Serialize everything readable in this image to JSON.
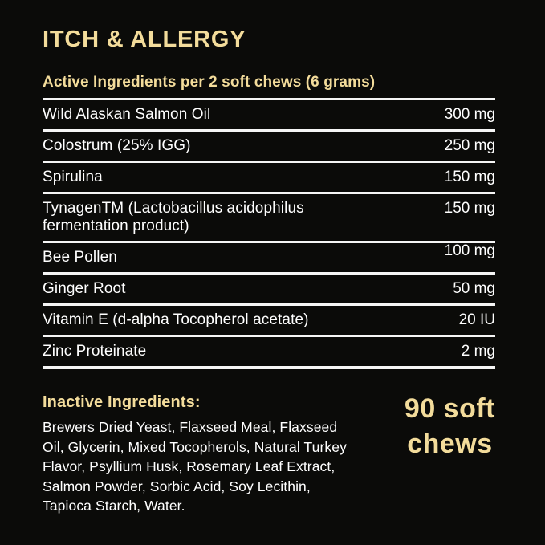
{
  "colors": {
    "background": "#0b0b09",
    "accent_yellow": "#f3dc9b",
    "text_white": "#ffffff",
    "divider_white": "#f5f5f5"
  },
  "header": {
    "title": "ITCH & ALLERGY",
    "subtitle": "Active Ingredients per 2 soft chews (6 grams)"
  },
  "table": {
    "rows": [
      {
        "name": "Wild Alaskan Salmon Oil",
        "amount": "300 mg"
      },
      {
        "name": "Colostrum (25% IGG)",
        "amount": "250 mg"
      },
      {
        "name": "Spirulina",
        "amount": "150 mg"
      },
      {
        "name": "TynagenTM (Lactobacillus acidophilus fermentation product)",
        "amount": "150 mg"
      },
      {
        "name": "Bee Pollen",
        "amount": "100 mg"
      },
      {
        "name": "Ginger Root",
        "amount": "50 mg"
      },
      {
        "name": "Vitamin E (d-alpha Tocopherol acetate)",
        "amount": "20 IU"
      },
      {
        "name": "Zinc Proteinate",
        "amount": "2 mg"
      }
    ]
  },
  "inactive": {
    "heading": "Inactive Ingredients:",
    "lines": [
      "Brewers Dried Yeast, Flaxseed Meal, Flaxseed",
      "Oil, Glycerin, Mixed Tocopherols, Natural Turkey",
      "Flavor, Psyllium Husk, Rosemary Leaf Extract,",
      "Salmon Powder, Sorbic Acid, Soy Lecithin,",
      "Tapioca Starch, Water."
    ]
  },
  "count": {
    "lines": [
      "90 soft",
      "chews"
    ]
  }
}
